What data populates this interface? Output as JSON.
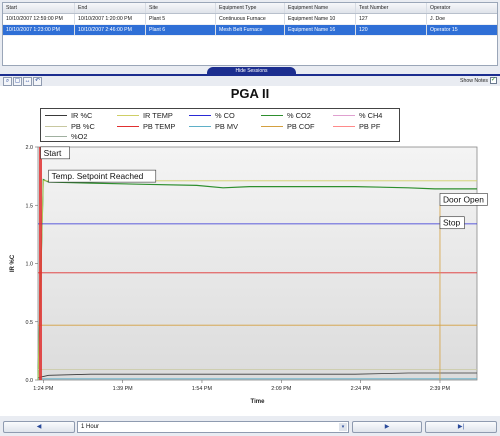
{
  "sessions": {
    "columns": [
      "Start",
      "End",
      "Site",
      "Equipment Type",
      "Equipment Name",
      "Test Number",
      "Operator"
    ],
    "rows": [
      [
        "10/10/2007 12:59:00 PM",
        "10/10/2007 1:20:00 PM",
        "Plant 5",
        "Continuous Furnace",
        "Equipment Name 10",
        "127",
        "J. Doe"
      ],
      [
        "10/10/2007 1:23:00 PM",
        "10/10/2007 2:46:00 PM",
        "Plant 6",
        "Mesh Belt Furnace",
        "Equipment Name 16",
        "120",
        "Operator 15"
      ]
    ],
    "selected_row": 1
  },
  "hide_sessions_label": "Hide Sessions",
  "toolbar": {
    "icons": [
      "zoom-icon",
      "select-icon",
      "pan-icon",
      "undo-icon"
    ],
    "glyphs": [
      "⌕",
      "▢",
      "↔",
      "↶"
    ]
  },
  "show_notes": {
    "label": "Show Notes",
    "checked": true,
    "check_glyph": "✓"
  },
  "chart": {
    "title": "PGA II"
  },
  "chart_data": {
    "type": "line",
    "title": "PGA II",
    "xlabel": "Time",
    "ylabel": "IR %C",
    "x_ticks": [
      "1:24 PM",
      "1:39 PM",
      "1:54 PM",
      "2:09 PM",
      "2:24 PM",
      "2:39 PM"
    ],
    "x_range": [
      "1:23 PM",
      "2:46 PM"
    ],
    "y_ticks": [
      "0.0",
      "0.5",
      "1.0",
      "1.5",
      "2.0"
    ],
    "ylim": [
      0,
      2.0
    ],
    "legend": [
      "IR %C",
      "IR TEMP",
      "% CO",
      "% CO2",
      "% CH4",
      "PB %C",
      "PB TEMP",
      "PB MV",
      "PB COF",
      "PB PF",
      "%O2"
    ],
    "colors": {
      "IR %C": "#3a3a3a",
      "IR TEMP": "#cfcf66",
      "% CO": "#2a2ad6",
      "% CO2": "#2e8f2e",
      "% CH4": "#e0a0d0",
      "PB %C": "#c8c8a0",
      "PB TEMP": "#e03030",
      "PB MV": "#5fb0c8",
      "PB COF": "#d4a040",
      "PB PF": "#ff8a8a",
      "%O2": "#a0b0a0"
    },
    "series": [
      {
        "name": "IR %C",
        "minutes": [
          0,
          2,
          10,
          20,
          30,
          40,
          50,
          60,
          70,
          75,
          83
        ],
        "values": [
          0.02,
          0.04,
          0.05,
          0.05,
          0.05,
          0.05,
          0.05,
          0.05,
          0.06,
          0.06,
          0.06
        ]
      },
      {
        "name": "% CO2",
        "minutes": [
          0,
          1,
          2,
          10,
          20,
          30,
          35,
          40,
          50,
          60,
          70,
          75,
          83
        ],
        "values": [
          0.0,
          1.72,
          1.7,
          1.69,
          1.68,
          1.67,
          1.65,
          1.66,
          1.66,
          1.66,
          1.65,
          1.64,
          1.64
        ]
      },
      {
        "name": "IR TEMP",
        "minutes": [
          0,
          1,
          2,
          10,
          20,
          30,
          40,
          50,
          60,
          70,
          75,
          83
        ],
        "values": [
          0.0,
          1.71,
          1.71,
          1.71,
          1.71,
          1.71,
          1.71,
          1.71,
          1.71,
          1.71,
          1.71,
          1.71
        ]
      },
      {
        "name": "% CO",
        "minutes": [
          0,
          83
        ],
        "values": [
          1.34,
          1.34
        ]
      },
      {
        "name": "PB TEMP",
        "minutes": [
          0,
          83
        ],
        "values": [
          0.92,
          0.92
        ]
      },
      {
        "name": "PB COF",
        "minutes": [
          0,
          83
        ],
        "values": [
          0.47,
          0.47
        ]
      },
      {
        "name": "PB %C",
        "minutes": [
          0,
          83
        ],
        "values": [
          0.09,
          0.09
        ]
      },
      {
        "name": "PB MV",
        "minutes": [
          0,
          83
        ],
        "values": [
          0.01,
          0.01
        ]
      }
    ],
    "annotations": [
      {
        "label": "Start",
        "minute": 0.5,
        "value": 1.95
      },
      {
        "label": "Temp. Setpoint Reached",
        "minute": 2,
        "value": 1.75
      },
      {
        "label": "Door Open",
        "minute": 76,
        "value": 1.55
      },
      {
        "label": "Stop",
        "minute": 76,
        "value": 1.35
      }
    ]
  },
  "bottom": {
    "prev_glyph": "◀",
    "range_value": "1 Hour",
    "range_arrow": "▾",
    "next_glyph": "▶",
    "last_glyph": "▶|"
  }
}
